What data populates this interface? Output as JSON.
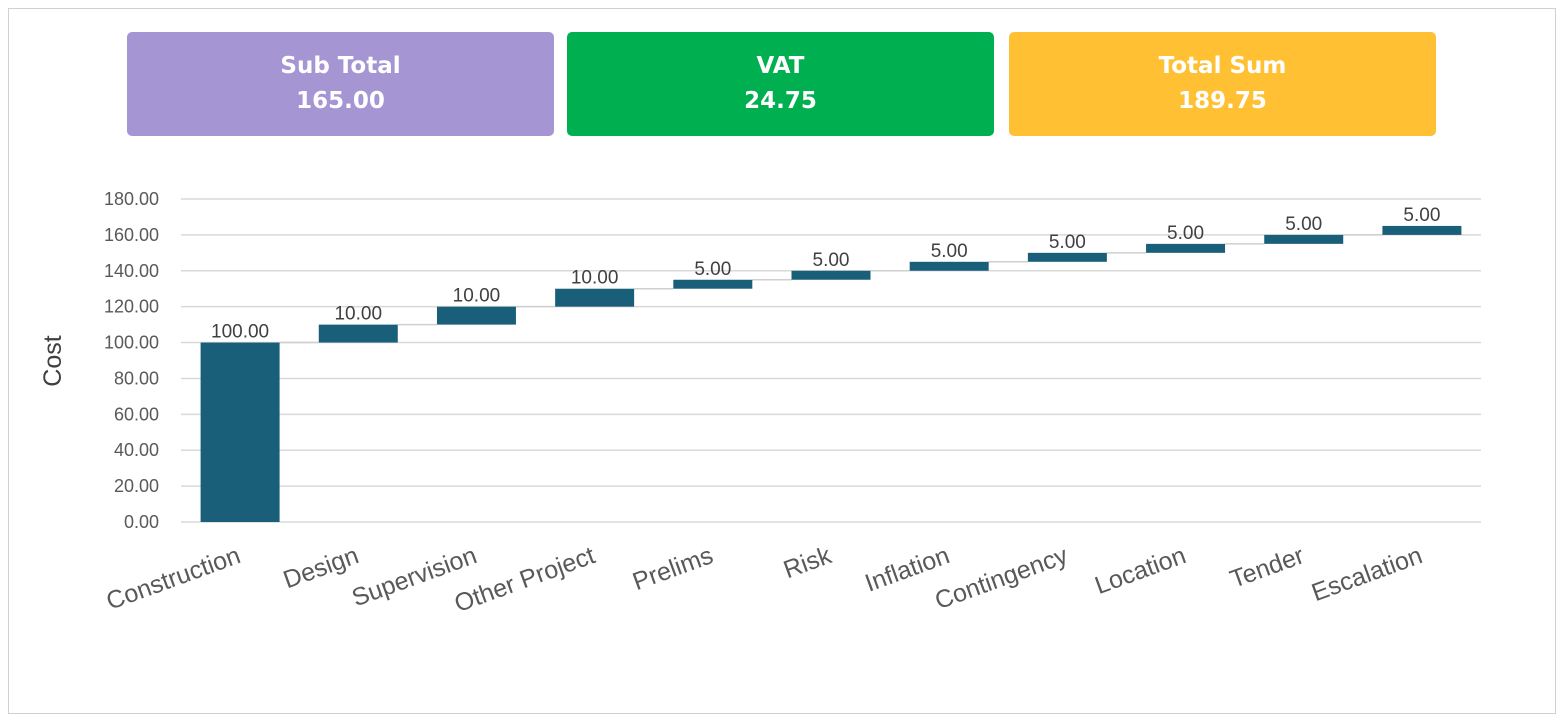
{
  "summary": {
    "subtotal": {
      "label": "Sub Total",
      "value": "165.00",
      "color": "#a596d3"
    },
    "vat": {
      "label": "VAT",
      "value": "24.75",
      "color": "#00b050"
    },
    "total": {
      "label": "Total Sum",
      "value": "189.75",
      "color": "#ffc133"
    }
  },
  "chart_data": {
    "type": "bar",
    "subtype": "waterfall",
    "title": "",
    "xlabel": "",
    "ylabel": "Cost",
    "ylim": [
      0,
      180
    ],
    "yticks": [
      "0.00",
      "20.00",
      "40.00",
      "60.00",
      "80.00",
      "100.00",
      "120.00",
      "140.00",
      "160.00",
      "180.00"
    ],
    "grid": true,
    "legend": "none",
    "bar_color": "#1a5f7a",
    "categories": [
      "Construction",
      "Design",
      "Supervision",
      "Other Project",
      "Prelims",
      "Risk",
      "Inflation",
      "Contingency",
      "Location",
      "Tender",
      "Escalation"
    ],
    "values": [
      100,
      10,
      10,
      10,
      5,
      5,
      5,
      5,
      5,
      5,
      5
    ],
    "data_labels": [
      "100.00",
      "10.00",
      "10.00",
      "10.00",
      "5.00",
      "5.00",
      "5.00",
      "5.00",
      "5.00",
      "5.00",
      "5.00"
    ]
  }
}
